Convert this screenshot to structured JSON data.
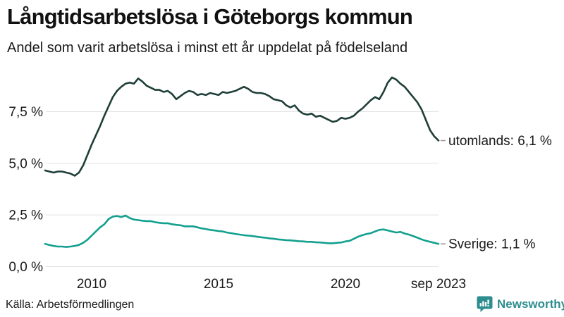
{
  "header": {
    "title": "Långtidsarbetslösa i Göteborgs kommun",
    "subtitle": "Andel som varit arbetslösa i minst ett år uppdelat på födelseland"
  },
  "chart_data": {
    "type": "line",
    "title": "Långtidsarbetslösa i Göteborgs kommun",
    "subtitle": "Andel som varit arbetslösa i minst ett år uppdelat på födelseland",
    "xlabel": "",
    "ylabel": "",
    "x_unit": "year",
    "x_start": 2008.1667,
    "x_step_years": 0.1666667,
    "x_end_label": "sep 2023",
    "ylim": [
      0,
      9.6
    ],
    "xlim": [
      2008.1667,
      2023.6667
    ],
    "grid": "horizontal",
    "grid_color": "#e1e1e1",
    "legend_position": "right-of-line-end",
    "y_ticks": [
      {
        "value": 0,
        "label": "0,0 %"
      },
      {
        "value": 2.5,
        "label": "2,5 %"
      },
      {
        "value": 5,
        "label": "5,0 %"
      },
      {
        "value": 7.5,
        "label": "7,5 %"
      }
    ],
    "x_ticks": [
      {
        "value": 2010,
        "label": "2010"
      },
      {
        "value": 2015,
        "label": "2015"
      },
      {
        "value": 2020,
        "label": "2020"
      },
      {
        "value": 2023.6667,
        "label": "sep 2023"
      }
    ],
    "series": [
      {
        "name": "utomlands",
        "label": "utomlands: 6,1 %",
        "last_value": 6.1,
        "color": "#1f3e38",
        "values": [
          4.65,
          4.6,
          4.55,
          4.6,
          4.6,
          4.55,
          4.5,
          4.4,
          4.55,
          4.9,
          5.4,
          5.9,
          6.35,
          6.8,
          7.3,
          7.75,
          8.2,
          8.5,
          8.7,
          8.85,
          8.9,
          8.85,
          9.1,
          8.95,
          8.75,
          8.65,
          8.55,
          8.55,
          8.45,
          8.5,
          8.35,
          8.1,
          8.25,
          8.4,
          8.5,
          8.45,
          8.3,
          8.35,
          8.3,
          8.4,
          8.35,
          8.3,
          8.45,
          8.4,
          8.45,
          8.5,
          8.6,
          8.7,
          8.6,
          8.45,
          8.4,
          8.4,
          8.35,
          8.25,
          8.1,
          8.05,
          8.0,
          7.8,
          7.7,
          7.8,
          7.55,
          7.4,
          7.35,
          7.4,
          7.25,
          7.3,
          7.2,
          7.1,
          7.0,
          7.05,
          7.2,
          7.15,
          7.2,
          7.3,
          7.5,
          7.65,
          7.85,
          8.05,
          8.2,
          8.1,
          8.45,
          8.9,
          9.15,
          9.05,
          8.85,
          8.7,
          8.45,
          8.2,
          7.95,
          7.6,
          7.1,
          6.6,
          6.3,
          6.1
        ]
      },
      {
        "name": "Sverige",
        "label": "Sverige: 1,1 %",
        "last_value": 1.1,
        "color": "#13a08f",
        "values": [
          1.1,
          1.05,
          1.0,
          0.97,
          0.97,
          0.95,
          0.97,
          1.0,
          1.05,
          1.15,
          1.3,
          1.5,
          1.7,
          1.9,
          2.05,
          2.3,
          2.42,
          2.45,
          2.4,
          2.47,
          2.35,
          2.28,
          2.25,
          2.22,
          2.2,
          2.2,
          2.15,
          2.12,
          2.1,
          2.1,
          2.05,
          2.02,
          2.0,
          1.95,
          1.95,
          1.95,
          1.9,
          1.85,
          1.82,
          1.78,
          1.75,
          1.72,
          1.7,
          1.65,
          1.62,
          1.58,
          1.55,
          1.52,
          1.5,
          1.48,
          1.45,
          1.42,
          1.4,
          1.37,
          1.35,
          1.32,
          1.3,
          1.28,
          1.27,
          1.25,
          1.23,
          1.22,
          1.2,
          1.2,
          1.18,
          1.17,
          1.15,
          1.13,
          1.13,
          1.15,
          1.17,
          1.22,
          1.25,
          1.35,
          1.45,
          1.52,
          1.58,
          1.62,
          1.7,
          1.78,
          1.8,
          1.75,
          1.7,
          1.65,
          1.68,
          1.6,
          1.55,
          1.48,
          1.4,
          1.32,
          1.25,
          1.2,
          1.15,
          1.1
        ]
      }
    ]
  },
  "footer": {
    "source": "Källa: Arbetsförmedlingen",
    "brand": "Newsworthy",
    "brand_color": "#2e8d8f"
  }
}
